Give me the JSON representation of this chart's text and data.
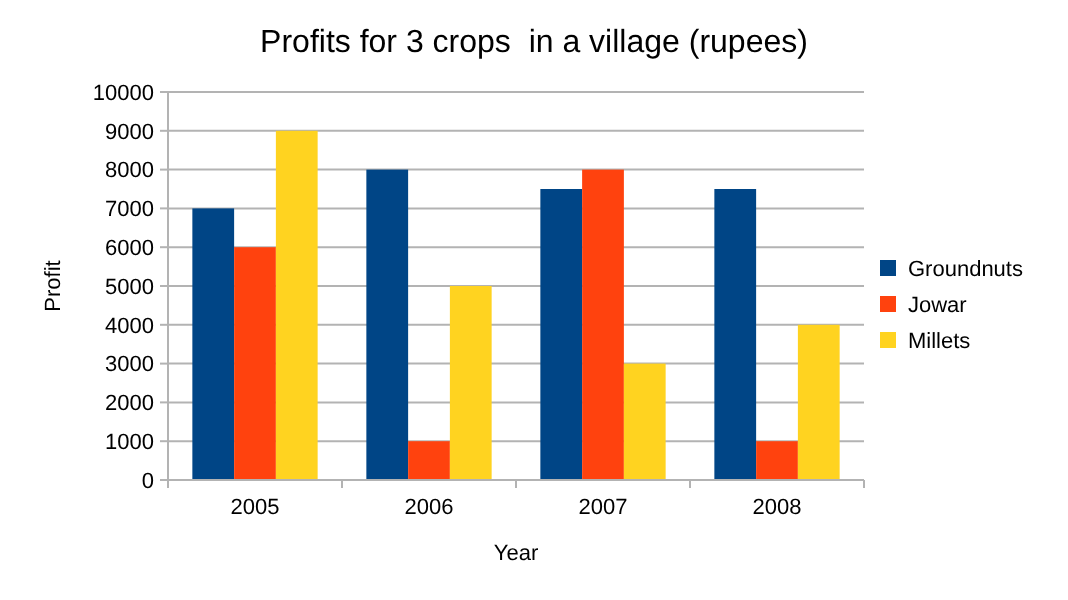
{
  "chart_data": {
    "type": "bar",
    "title": "Profits for 3 crops  in a village (rupees)",
    "xlabel": "Year",
    "ylabel": "Profit",
    "categories": [
      "2005",
      "2006",
      "2007",
      "2008"
    ],
    "series": [
      {
        "name": "Groundnuts",
        "color": "#004586",
        "values": [
          7000,
          8000,
          7500,
          7500
        ]
      },
      {
        "name": "Jowar",
        "color": "#ff420e",
        "values": [
          6000,
          1000,
          8000,
          1000
        ]
      },
      {
        "name": "Millets",
        "color": "#ffd320",
        "values": [
          9000,
          5000,
          3000,
          4000
        ]
      }
    ],
    "ylim": [
      0,
      10000
    ],
    "yticks": [
      0,
      1000,
      2000,
      3000,
      4000,
      5000,
      6000,
      7000,
      8000,
      9000,
      10000
    ],
    "grid": "y",
    "legend": "right"
  }
}
